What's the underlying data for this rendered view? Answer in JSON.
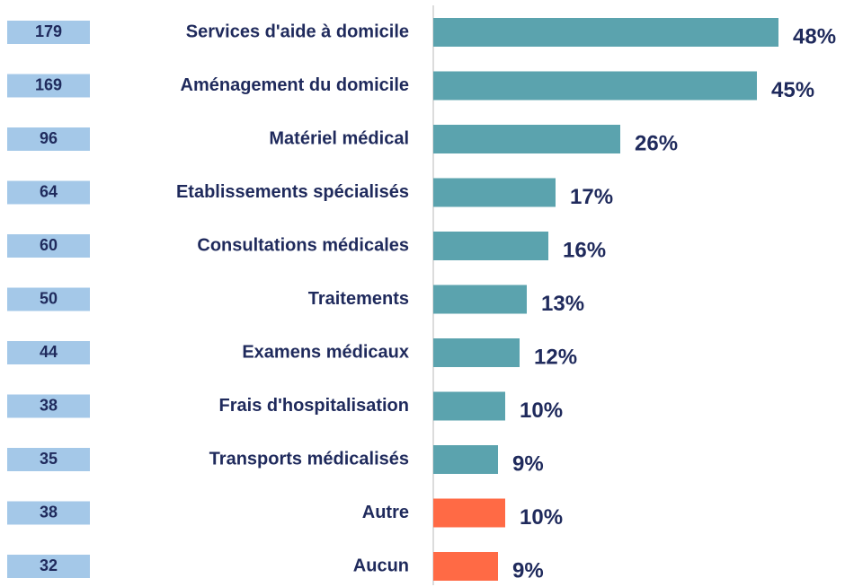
{
  "chart_data": {
    "type": "barh",
    "categories": [
      "Services d'aide à domicile",
      "Aménagement du domicile",
      "Matériel médical",
      "Etablissements spécialisés",
      "Consultations médicales",
      "Traitements",
      "Examens médicaux",
      "Frais d'hospitalisation",
      "Transports médicalisés",
      "Autre",
      "Aucun"
    ],
    "values": [
      48,
      45,
      26,
      17,
      16,
      13,
      12,
      10,
      9,
      10,
      9
    ],
    "value_labels": [
      "48%",
      "45%",
      "26%",
      "17%",
      "16%",
      "13%",
      "12%",
      "10%",
      "9%",
      "10%",
      "9%"
    ],
    "counts": [
      179,
      169,
      96,
      64,
      60,
      50,
      44,
      38,
      35,
      38,
      32
    ],
    "colors": [
      "#5ba3ae",
      "#5ba3ae",
      "#5ba3ae",
      "#5ba3ae",
      "#5ba3ae",
      "#5ba3ae",
      "#5ba3ae",
      "#5ba3ae",
      "#5ba3ae",
      "#ff6a45",
      "#ff6a45"
    ]
  }
}
